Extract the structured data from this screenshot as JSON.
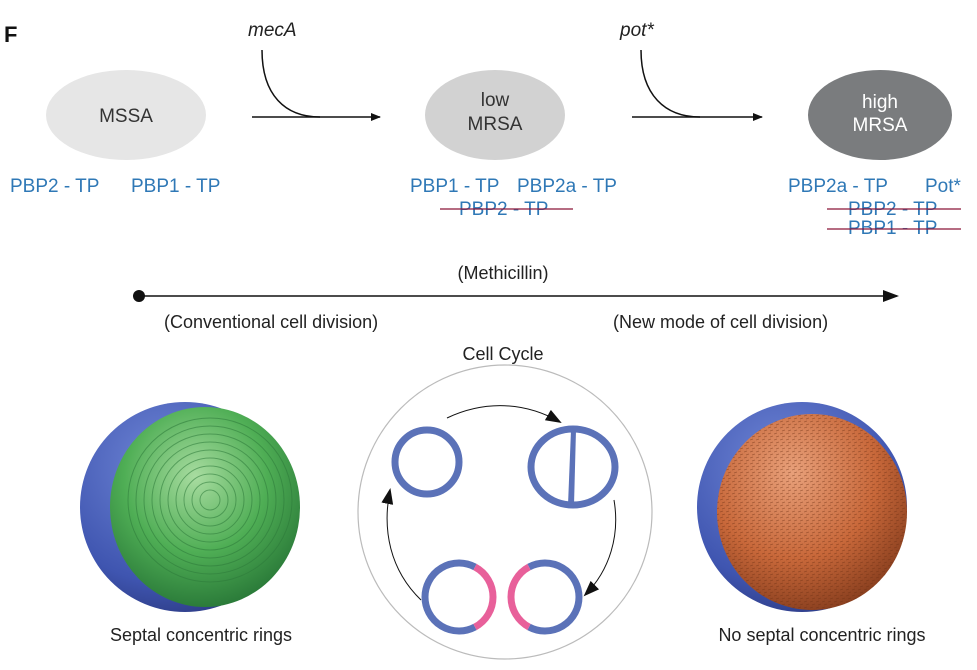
{
  "panel_label": "F",
  "colors": {
    "protein_text": "#2f78b6",
    "strike": "#8b1538",
    "membrane": "#5b72b8",
    "septum_new": "#e8609a",
    "mssa": "#e6e6e6",
    "low_mrsa": "#d2d2d2",
    "high_mrsa": "#7a7c7e"
  },
  "top": {
    "gene1": "mecA",
    "gene2": "pot*",
    "states": [
      {
        "label_lines": [
          "MSSA"
        ],
        "proteins": [
          "PBP2 - TP",
          "PBP1 - TP"
        ],
        "struck": []
      },
      {
        "label_lines": [
          "low",
          "MRSA"
        ],
        "proteins": [
          "PBP1 - TP",
          "PBP2a - TP"
        ],
        "struck": [
          "PBP2 - TP"
        ]
      },
      {
        "label_lines": [
          "high",
          "MRSA"
        ],
        "proteins": [
          "PBP2a - TP",
          "Pot*"
        ],
        "struck": [
          "PBP2 - TP",
          "PBP1 - TP"
        ]
      }
    ]
  },
  "timeline": {
    "label": "(Methicillin)",
    "left": "(Conventional cell division)",
    "right": "(New mode of cell division)"
  },
  "bottom": {
    "cycle_title": "Cell Cycle",
    "left_caption": "Septal concentric rings",
    "right_caption": "No septal concentric rings"
  }
}
